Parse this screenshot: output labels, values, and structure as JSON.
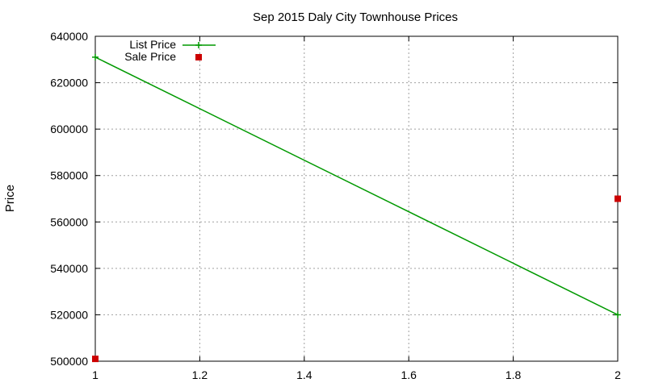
{
  "chart_data": {
    "type": "scatter",
    "title": "Sep 2015 Daly City Townhouse Prices",
    "xlabel": "",
    "ylabel": "Price",
    "xlim": [
      1,
      2
    ],
    "ylim": [
      500000,
      640000
    ],
    "x_ticks": [
      1,
      1.2,
      1.4,
      1.6,
      1.8,
      2
    ],
    "x_tick_labels": [
      "1",
      "1.2",
      "1.4",
      "1.6",
      "1.8",
      "2"
    ],
    "y_ticks": [
      500000,
      520000,
      540000,
      560000,
      580000,
      600000,
      620000,
      640000
    ],
    "y_tick_labels": [
      "500000",
      "520000",
      "540000",
      "560000",
      "580000",
      "600000",
      "620000",
      "640000"
    ],
    "grid": true,
    "legend_position": "top-left",
    "series": [
      {
        "name": "List Price",
        "style": "linespoints",
        "marker": "plus",
        "color": "#009900",
        "points": [
          {
            "x": 1,
            "y": 631000
          },
          {
            "x": 2,
            "y": 520000
          }
        ]
      },
      {
        "name": "Sale Price",
        "style": "points",
        "marker": "square",
        "color": "#cc0000",
        "points": [
          {
            "x": 1,
            "y": 501000
          },
          {
            "x": 2,
            "y": 570000
          }
        ]
      }
    ]
  }
}
